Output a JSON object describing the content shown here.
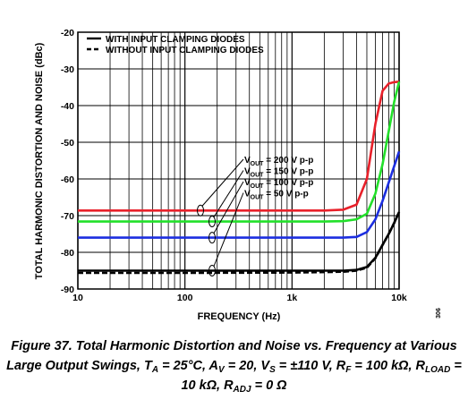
{
  "chart_data": {
    "type": "line",
    "xlabel": "FREQUENCY (Hz)",
    "ylabel": "TOTAL HARMONIC DISTORTION AND NOISE (dBc)",
    "side_note": "306",
    "log_x": true,
    "grid": true,
    "legend": "upper left",
    "xlim": [
      10,
      10000
    ],
    "ylim": [
      -90,
      -20
    ],
    "xticks": [
      10,
      100,
      {
        "value": 1000,
        "label": "1k"
      },
      {
        "value": 10000,
        "label": "10k"
      }
    ],
    "x_minor_ticks": [
      20,
      30,
      40,
      50,
      60,
      70,
      80,
      90,
      200,
      300,
      400,
      500,
      600,
      700,
      800,
      900,
      2000,
      3000,
      4000,
      5000,
      6000,
      7000,
      8000,
      9000
    ],
    "yticks": [
      -20,
      -30,
      -40,
      -50,
      -60,
      -70,
      -80,
      -90
    ],
    "x": [
      10,
      100,
      1000,
      2000,
      3000,
      4000,
      5000,
      6000,
      7000,
      8000,
      9000,
      10000
    ],
    "series": [
      {
        "color": "#e8202a",
        "dash": false,
        "values": [
          -68.6,
          -68.6,
          -68.6,
          -68.6,
          -68.4,
          -67,
          -60,
          -45,
          -36,
          -34,
          -33.6,
          -33.5
        ]
      },
      {
        "color": "#22e02a",
        "dash": false,
        "values": [
          -71.6,
          -71.6,
          -71.6,
          -71.6,
          -71.5,
          -71,
          -69.5,
          -64,
          -56,
          -47,
          -39,
          -33.5
        ]
      },
      {
        "color": "#1c2ee0",
        "dash": false,
        "values": [
          -76,
          -76,
          -76,
          -76,
          -76,
          -75.8,
          -74.5,
          -71,
          -66,
          -61,
          -56.5,
          -52.5
        ]
      },
      {
        "name": "WITH INPUT CLAMPING DIODES",
        "color": "#000000",
        "dash": false,
        "values": [
          -85,
          -85,
          -85,
          -85,
          -85,
          -84.8,
          -84,
          -81.5,
          -78,
          -75,
          -72,
          -69
        ]
      },
      {
        "name": "WITHOUT INPUT CLAMPING DIODES",
        "color": "#000000",
        "dash": true,
        "values": [
          -85.6,
          -85.6,
          -85.5,
          -85.4,
          -85.3,
          -85,
          -84.2,
          -81.6,
          -78,
          -75,
          -72,
          -69
        ]
      }
    ],
    "annotations": [
      {
        "v": "V",
        "sub": "OUT",
        "text": " = 200 V p-p"
      },
      {
        "v": "V",
        "sub": "OUT",
        "text": " = 150 V p-p"
      },
      {
        "v": "V",
        "sub": "OUT",
        "text": " = 100 V p-p"
      },
      {
        "v": "V",
        "sub": "OUT",
        "text": " = 50 V p-p"
      }
    ],
    "caption": [
      [
        {
          "text": "Figure 37. Total Harmonic Distortion and Noise vs. Frequency at Various"
        }
      ],
      [
        {
          "text": "Large Output Swings, T"
        },
        {
          "text": "A",
          "sub": true
        },
        {
          "text": " = 25°C, A"
        },
        {
          "text": "V",
          "sub": true
        },
        {
          "text": " = 20, V"
        },
        {
          "text": "S",
          "sub": true
        },
        {
          "text": " = ±110 V, R"
        },
        {
          "text": "F",
          "sub": true
        },
        {
          "text": " = 100 kΩ, R"
        },
        {
          "text": "LOAD",
          "sub": true
        },
        {
          "text": " ="
        }
      ],
      [
        {
          "text": "10 kΩ, R"
        },
        {
          "text": "ADJ",
          "sub": true
        },
        {
          "text": " = 0 Ω"
        }
      ]
    ]
  }
}
